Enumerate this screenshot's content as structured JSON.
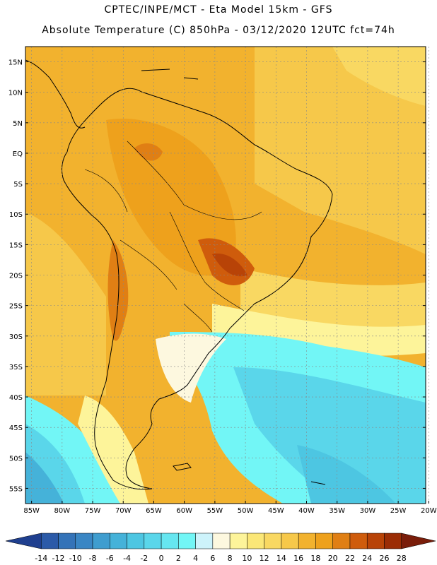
{
  "header": {
    "title_line1": "CPTEC/INPE/MCT -  Eta Model 15km - GFS",
    "title_line2": "Absolute Temperature (C) 850hPa - 03/12/2020 12UTC fct=74h"
  },
  "map": {
    "lat_labels": [
      "15N",
      "10N",
      "5N",
      "EQ",
      "5S",
      "10S",
      "15S",
      "20S",
      "25S",
      "30S",
      "35S",
      "40S",
      "45S",
      "50S",
      "55S"
    ],
    "lon_labels": [
      "85W",
      "80W",
      "75W",
      "70W",
      "65W",
      "60W",
      "55W",
      "50W",
      "45W",
      "40W",
      "35W",
      "30W",
      "25W",
      "20W"
    ],
    "gridlines": true
  },
  "colorbar": {
    "levels": [
      "-14",
      "-12",
      "-10",
      "-8",
      "-6",
      "-4",
      "-2",
      "0",
      "2",
      "4",
      "6",
      "8",
      "10",
      "12",
      "14",
      "16",
      "18",
      "20",
      "22",
      "24",
      "26",
      "28"
    ],
    "colors": [
      "#1f3f8f",
      "#2b5aa8",
      "#3473b8",
      "#3a86c4",
      "#3f9dcf",
      "#45b2d9",
      "#4dc6e2",
      "#5ad6ea",
      "#66e6f0",
      "#72f6f6",
      "#cdf3fb",
      "#fdf8df",
      "#fdf49a",
      "#fbe777",
      "#f9d862",
      "#f6c84a",
      "#f2b22e",
      "#eea11c",
      "#e07f14",
      "#cf5c0c",
      "#b84307",
      "#9b2d05",
      "#7a1d0a"
    ]
  }
}
